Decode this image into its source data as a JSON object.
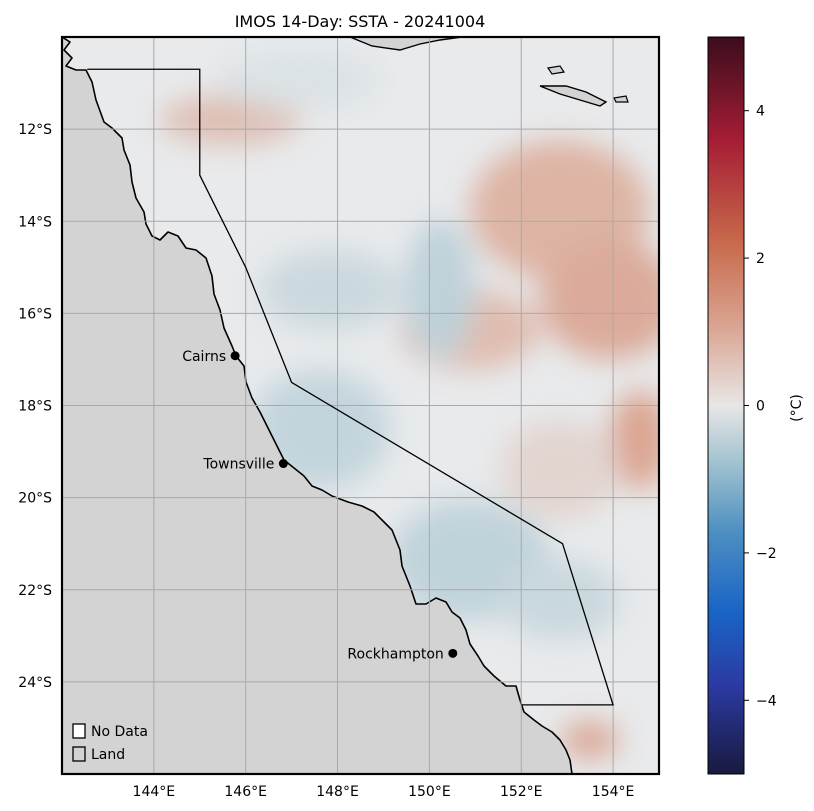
{
  "title": "IMOS 14-Day: SSTA - 20241004",
  "map": {
    "lon_range": [
      142,
      155
    ],
    "lat_range": [
      -26,
      -10
    ],
    "lon_ticks": [
      {
        "value": 144,
        "label": "144°E"
      },
      {
        "value": 146,
        "label": "146°E"
      },
      {
        "value": 148,
        "label": "148°E"
      },
      {
        "value": 150,
        "label": "150°E"
      },
      {
        "value": 152,
        "label": "152°E"
      },
      {
        "value": 154,
        "label": "154°E"
      }
    ],
    "lat_ticks": [
      {
        "value": -12,
        "label": "12°S"
      },
      {
        "value": -14,
        "label": "14°S"
      },
      {
        "value": -16,
        "label": "16°S"
      },
      {
        "value": -18,
        "label": "18°S"
      },
      {
        "value": -20,
        "label": "20°S"
      },
      {
        "value": -22,
        "label": "22°S"
      },
      {
        "value": -24,
        "label": "24°S"
      }
    ],
    "grid": true,
    "land_color": "#d3d3d3",
    "ocean_base_color": "#e8eaec",
    "boundary_polygon": [
      [
        142.55,
        -10.7
      ],
      [
        145.0,
        -10.7
      ],
      [
        145.0,
        -13.0
      ],
      [
        146.0,
        -15.0
      ],
      [
        147.0,
        -17.5
      ],
      [
        152.9,
        -21.0
      ],
      [
        154.0,
        -24.5
      ],
      [
        152.0,
        -24.5
      ]
    ],
    "cities": [
      {
        "name": "Cairns",
        "lon": 145.77,
        "lat": -16.92
      },
      {
        "name": "Townsville",
        "lon": 146.82,
        "lat": -19.26
      },
      {
        "name": "Rockhampton",
        "lon": 150.51,
        "lat": -23.38
      }
    ]
  },
  "legend": {
    "items": [
      {
        "label": "No Data",
        "color": "#ffffff"
      },
      {
        "label": "Land",
        "color": "#d3d3d3"
      }
    ],
    "placement": "bottom-left"
  },
  "colorbar": {
    "label": "(°C)",
    "range": [
      -5,
      5
    ],
    "ticks": [
      {
        "value": 4,
        "label": "4"
      },
      {
        "value": 2,
        "label": "2"
      },
      {
        "value": 0,
        "label": "0"
      },
      {
        "value": -2,
        "label": "−2"
      },
      {
        "value": -4,
        "label": "−4"
      }
    ],
    "colormap": [
      "#181a3e",
      "#2b3aa3",
      "#1a64c6",
      "#4e90c1",
      "#9fc1cf",
      "#e8e6e5",
      "#dba897",
      "#c86a4b",
      "#a51d35",
      "#3b0d1c"
    ]
  }
}
